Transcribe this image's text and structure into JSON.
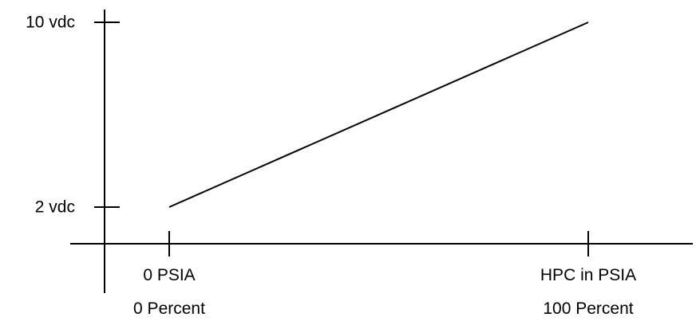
{
  "chart_data": {
    "type": "line",
    "title": "",
    "xlabel": "",
    "ylabel": "",
    "x_ticks": [
      {
        "value": 0,
        "label": "0 PSIA",
        "sublabel": "0 Percent"
      },
      {
        "value": 100,
        "label": "HPC in PSIA",
        "sublabel": "100 Percent"
      }
    ],
    "y_ticks": [
      {
        "value": 2,
        "label": "2 vdc"
      },
      {
        "value": 10,
        "label": "10 vdc"
      }
    ],
    "series": [
      {
        "points": [
          {
            "x": 0,
            "y": 2
          },
          {
            "x": 100,
            "y": 10
          }
        ]
      }
    ],
    "grid": false,
    "legend": "none",
    "colors": {
      "line": "#000000",
      "axis": "#000000",
      "text": "#000000",
      "background": "#ffffff"
    }
  }
}
